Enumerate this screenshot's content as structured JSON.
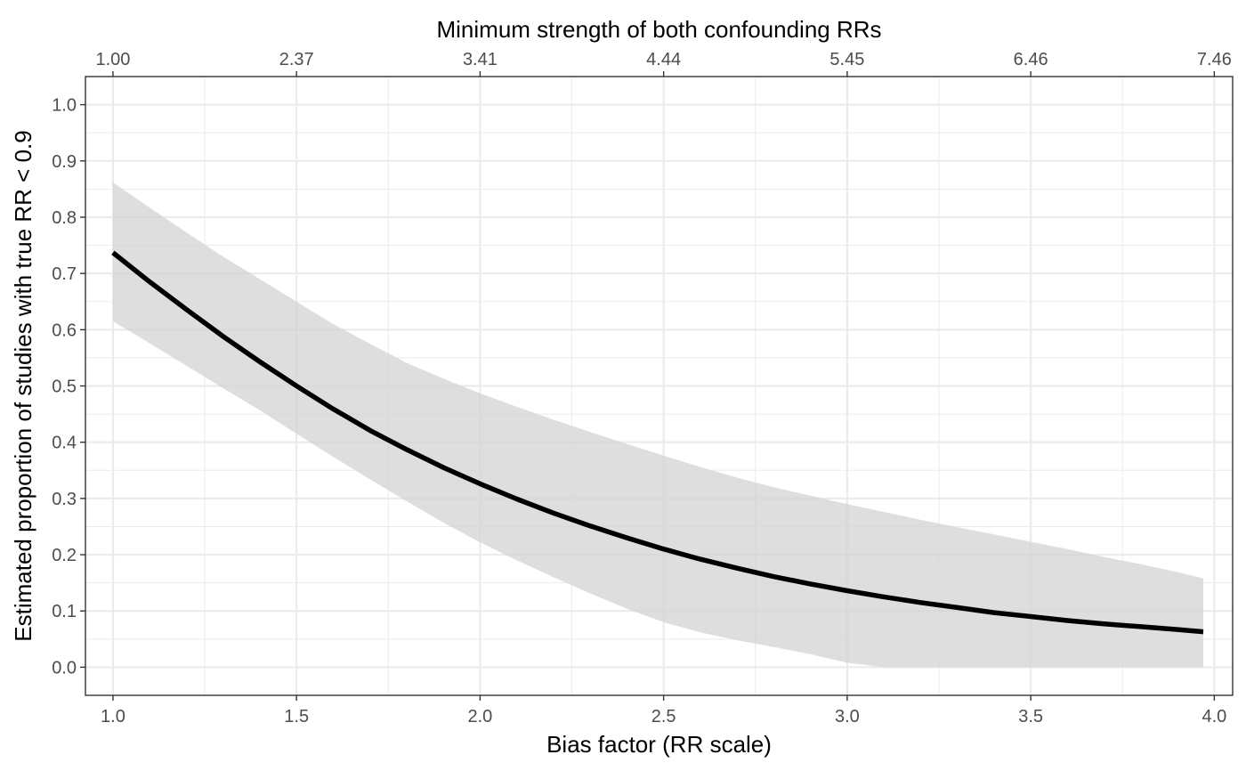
{
  "chart_data": {
    "type": "line",
    "title": "",
    "xlabel": "Bias factor (RR scale)",
    "ylabel": "Estimated proportion of studies with true RR < 0.9",
    "x2label": "Minimum strength of both confounding RRs",
    "xlim": [
      0.925,
      4.05
    ],
    "ylim": [
      -0.05,
      1.05
    ],
    "x_ticks": [
      "1.0",
      "1.5",
      "2.0",
      "2.5",
      "3.0",
      "3.5",
      "4.0"
    ],
    "x_tick_values": [
      1.0,
      1.5,
      2.0,
      2.5,
      3.0,
      3.5,
      4.0
    ],
    "x2_ticks": [
      "1.00",
      "2.37",
      "3.41",
      "4.44",
      "5.45",
      "6.46",
      "7.46"
    ],
    "x2_tick_positions": [
      1.0,
      1.5,
      2.0,
      2.5,
      3.0,
      3.5,
      4.0
    ],
    "y_ticks": [
      "0.0",
      "0.1",
      "0.2",
      "0.3",
      "0.4",
      "0.5",
      "0.6",
      "0.7",
      "0.8",
      "0.9",
      "1.0"
    ],
    "y_tick_values": [
      0.0,
      0.1,
      0.2,
      0.3,
      0.4,
      0.5,
      0.6,
      0.7,
      0.8,
      0.9,
      1.0
    ],
    "grid": true,
    "colors": {
      "line": "#000000",
      "band": "#d3d3d3",
      "grid": "#ebebeb",
      "border": "#333333"
    },
    "series": [
      {
        "x": [
          1.0,
          1.1,
          1.2,
          1.3,
          1.4,
          1.5,
          1.6,
          1.7,
          1.8,
          1.9,
          2.0,
          2.1,
          2.2,
          2.3,
          2.4,
          2.5,
          2.6,
          2.7,
          2.8,
          2.9,
          3.0,
          3.1,
          3.2,
          3.3,
          3.4,
          3.5,
          3.6,
          3.7,
          3.8,
          3.9,
          3.97
        ],
        "y": [
          0.737,
          0.685,
          0.636,
          0.588,
          0.543,
          0.5,
          0.459,
          0.421,
          0.387,
          0.355,
          0.326,
          0.299,
          0.274,
          0.251,
          0.23,
          0.21,
          0.192,
          0.176,
          0.161,
          0.148,
          0.136,
          0.125,
          0.115,
          0.106,
          0.097,
          0.09,
          0.083,
          0.077,
          0.072,
          0.067,
          0.063
        ],
        "lower": [
          0.615,
          0.576,
          0.536,
          0.496,
          0.457,
          0.415,
          0.374,
          0.334,
          0.295,
          0.257,
          0.222,
          0.19,
          0.16,
          0.131,
          0.104,
          0.08,
          0.062,
          0.048,
          0.036,
          0.023,
          0.008,
          0.0,
          0.0,
          0.0,
          0.0,
          0.0,
          0.0,
          0.0,
          0.0,
          0.0,
          0.0
        ],
        "upper": [
          0.862,
          0.817,
          0.773,
          0.73,
          0.69,
          0.65,
          0.61,
          0.575,
          0.541,
          0.513,
          0.487,
          0.463,
          0.44,
          0.418,
          0.397,
          0.376,
          0.356,
          0.337,
          0.32,
          0.305,
          0.29,
          0.276,
          0.262,
          0.249,
          0.236,
          0.223,
          0.21,
          0.196,
          0.183,
          0.169,
          0.158
        ]
      }
    ]
  }
}
